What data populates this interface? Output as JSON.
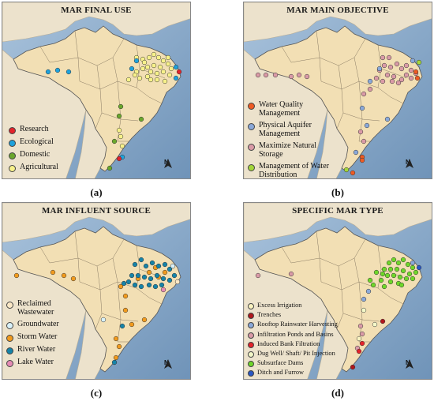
{
  "panels": [
    {
      "title": "MAR FINAL USE",
      "caption": "(a)",
      "legend": [
        {
          "label": "Research",
          "color": "#e3242b"
        },
        {
          "label": "Ecological",
          "color": "#1ea2dc"
        },
        {
          "label": "Domestic",
          "color": "#6aa62c"
        },
        {
          "label": "Agricultural",
          "color": "#f7f18a"
        }
      ]
    },
    {
      "title": "MAR MAIN OBJECTIVE",
      "caption": "(b)",
      "legend": [
        {
          "label": "Water Quality Management",
          "color": "#ee5b24"
        },
        {
          "label": "Physical Aquifer Management",
          "color": "#8aa8d8"
        },
        {
          "label": "Maximize Natural Storage",
          "color": "#d99aa6"
        },
        {
          "label": "Management of Water Distribution",
          "color": "#a4d63a"
        }
      ]
    },
    {
      "title": "MAR INFLUENT SOURCE",
      "caption": "(c)",
      "legend": [
        {
          "label": "Reclaimed Wastewater",
          "color": "#fbe8c6"
        },
        {
          "label": "Groundwater",
          "color": "#d8f0f8"
        },
        {
          "label": "Storm Water",
          "color": "#f09a1e"
        },
        {
          "label": "River Water",
          "color": "#1683a8"
        },
        {
          "label": "Lake Water",
          "color": "#e58ab4"
        }
      ]
    },
    {
      "title": "SPECIFIC MAR TYPE",
      "caption": "(d)",
      "legend": [
        {
          "label": "Excess Irrigation",
          "color": "#faf3c0"
        },
        {
          "label": "Trenches",
          "color": "#b0181c"
        },
        {
          "label": "Rooftop Rainwater Harvesting",
          "color": "#8aa8d8"
        },
        {
          "label": "Infiltration Ponds and Basins",
          "color": "#d99aa6"
        },
        {
          "label": "Induced Bank Filtration",
          "color": "#e3242b"
        },
        {
          "label": "Dug Well/ Shaft/ Pit Injection",
          "color": "#f4f8c8"
        },
        {
          "label": "Subsurface Dams",
          "color": "#6fd62a"
        },
        {
          "label": "Ditch and Furrow",
          "color": "#2a57c4"
        }
      ]
    }
  ],
  "north_label": "N",
  "colors": {
    "ocean_light": "#a9c3dc",
    "ocean_dark": "#6f93b8",
    "land": "#f2dfb4",
    "neighbor_land": "#ece2cc",
    "border": "#555555"
  }
}
